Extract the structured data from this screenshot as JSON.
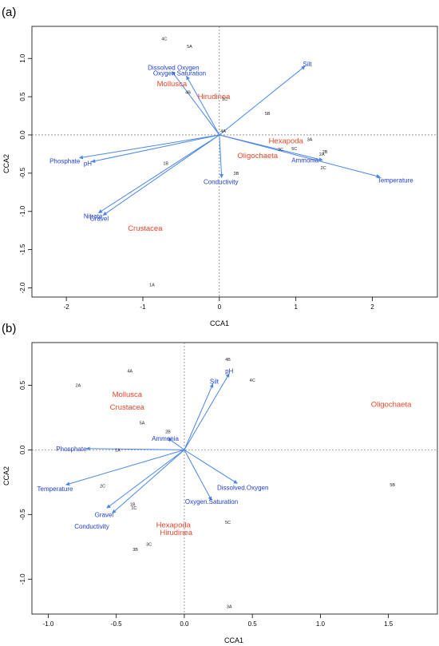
{
  "figure": {
    "colors": {
      "arrow": "#4a86e8",
      "env_label": "#1f3fd6",
      "species_label": "#e8462a",
      "site_label": "#222222",
      "axis": "#000000",
      "refline": "#555555"
    }
  },
  "chart_data": [
    {
      "panel_label": "(a)",
      "type": "scatter",
      "subtype": "CCA triplot",
      "xlabel": "CCA1",
      "ylabel": "CCA2",
      "xlim": [
        -2.45,
        2.85
      ],
      "ylim": [
        -2.12,
        1.42
      ],
      "xticks": [
        -2,
        -1,
        0,
        1,
        2
      ],
      "yticks": [
        -2.0,
        -1.5,
        -1.0,
        -0.5,
        0.0,
        0.5,
        1.0
      ],
      "xtick_labels": [
        "-2",
        "-1",
        "0",
        "1",
        "2"
      ],
      "ytick_labels": [
        "-2.0",
        "-1.5",
        "-1.0",
        "-0.5",
        "0.0",
        "0.5",
        "1.0"
      ],
      "reference_lines": {
        "x": 0,
        "y": 0
      },
      "env_vectors": [
        {
          "name": "Silt",
          "x": 1.12,
          "y": 0.9,
          "lx": 1.15,
          "ly": 0.93
        },
        {
          "name": "Dissolved Oxygen",
          "x": -0.62,
          "y": 0.83,
          "lx": -0.6,
          "ly": 0.88
        },
        {
          "name": "Oxygen Saturation",
          "x": -0.43,
          "y": 0.77,
          "lx": -0.52,
          "ly": 0.81
        },
        {
          "name": "Temperature",
          "x": 2.1,
          "y": -0.55,
          "lx": 2.3,
          "ly": -0.59
        },
        {
          "name": "Ammonia",
          "x": 1.35,
          "y": -0.33,
          "lx": 1.12,
          "ly": -0.33
        },
        {
          "name": "Conductivity",
          "x": 0.03,
          "y": -0.56,
          "lx": 0.02,
          "ly": -0.61
        },
        {
          "name": "Phosphate",
          "x": -1.83,
          "y": -0.3,
          "lx": -2.02,
          "ly": -0.34
        },
        {
          "name": "pH",
          "x": -1.67,
          "y": -0.35,
          "lx": -1.72,
          "ly": -0.37
        },
        {
          "name": "Nitrate",
          "x": -1.58,
          "y": -1.02,
          "lx": -1.65,
          "ly": -1.06
        },
        {
          "name": "Gravel",
          "x": -1.52,
          "y": -1.05,
          "lx": -1.57,
          "ly": -1.09
        }
      ],
      "species": [
        {
          "name": "Mollusca",
          "x": -0.62,
          "y": 0.67
        },
        {
          "name": "Hirudinea",
          "x": -0.07,
          "y": 0.5
        },
        {
          "name": "Hexapoda",
          "x": 0.87,
          "y": -0.08
        },
        {
          "name": "Oligochaeta",
          "x": 0.5,
          "y": -0.27
        },
        {
          "name": "Crustacea",
          "x": -0.97,
          "y": -1.22
        }
      ],
      "sites": [
        {
          "name": "4C",
          "x": -0.72,
          "y": 1.26
        },
        {
          "name": "5A",
          "x": -0.39,
          "y": 1.16
        },
        {
          "name": "4B",
          "x": -0.41,
          "y": 0.56
        },
        {
          "name": "1C",
          "x": 0.07,
          "y": 0.47
        },
        {
          "name": "5B",
          "x": 0.63,
          "y": 0.28
        },
        {
          "name": "4A",
          "x": 0.05,
          "y": 0.05
        },
        {
          "name": "3A",
          "x": 1.18,
          "y": -0.06
        },
        {
          "name": "3C",
          "x": 0.8,
          "y": -0.19
        },
        {
          "name": "5C",
          "x": 0.98,
          "y": -0.18
        },
        {
          "name": "2B",
          "x": 1.38,
          "y": -0.22
        },
        {
          "name": "2A",
          "x": 1.34,
          "y": -0.25
        },
        {
          "name": "2C",
          "x": 1.36,
          "y": -0.43
        },
        {
          "name": "1B",
          "x": -0.7,
          "y": -0.37
        },
        {
          "name": "3B",
          "x": 0.22,
          "y": -0.5
        },
        {
          "name": "1A",
          "x": -0.88,
          "y": -1.96
        }
      ]
    },
    {
      "panel_label": "(b)",
      "type": "scatter",
      "subtype": "CCA triplot",
      "xlabel": "CCA1",
      "ylabel": "CCA2",
      "xlim": [
        -1.12,
        1.86
      ],
      "ylim": [
        -1.27,
        0.83
      ],
      "xticks": [
        -1.0,
        -0.5,
        0.0,
        0.5,
        1.0,
        1.5
      ],
      "yticks": [
        -1.0,
        -0.5,
        0.0,
        0.5
      ],
      "xtick_labels": [
        "-1.0",
        "-0.5",
        "0.0",
        "0.5",
        "1.0",
        "1.5"
      ],
      "ytick_labels": [
        "-1.0",
        "-0.5",
        "0.0",
        "0.5"
      ],
      "reference_lines": {
        "x": 0,
        "y": 0
      },
      "env_vectors": [
        {
          "name": "Silt",
          "x": 0.21,
          "y": 0.51,
          "lx": 0.22,
          "ly": 0.53
        },
        {
          "name": "pH",
          "x": 0.33,
          "y": 0.59,
          "lx": 0.33,
          "ly": 0.61
        },
        {
          "name": "Ammonia",
          "x": -0.12,
          "y": 0.09,
          "lx": -0.14,
          "ly": 0.09
        },
        {
          "name": "Phosphate",
          "x": -0.72,
          "y": 0.01,
          "lx": -0.83,
          "ly": 0.01
        },
        {
          "name": "Temperature",
          "x": -0.87,
          "y": -0.27,
          "lx": -0.95,
          "ly": -0.3
        },
        {
          "name": "Gravel",
          "x": -0.57,
          "y": -0.45,
          "lx": -0.59,
          "ly": -0.5
        },
        {
          "name": "Conductivity",
          "x": -0.53,
          "y": -0.49,
          "lx": -0.68,
          "ly": -0.59
        },
        {
          "name": "Dissolved.Oxygen",
          "x": 0.39,
          "y": -0.26,
          "lx": 0.43,
          "ly": -0.29
        },
        {
          "name": "Oxygen.Saturation",
          "x": 0.2,
          "y": -0.39,
          "lx": 0.2,
          "ly": -0.4
        }
      ],
      "species": [
        {
          "name": "Mollusca",
          "x": -0.42,
          "y": 0.43
        },
        {
          "name": "Crustacea",
          "x": -0.42,
          "y": 0.33
        },
        {
          "name": "Oligochaeta",
          "x": 1.52,
          "y": 0.35
        },
        {
          "name": "Hexapoda",
          "x": -0.08,
          "y": -0.58
        },
        {
          "name": "Hirudinea",
          "x": -0.06,
          "y": -0.64
        }
      ],
      "sites": [
        {
          "name": "4B",
          "x": 0.32,
          "y": 0.7
        },
        {
          "name": "4A",
          "x": -0.4,
          "y": 0.61
        },
        {
          "name": "4C",
          "x": 0.5,
          "y": 0.54
        },
        {
          "name": "2A",
          "x": -0.78,
          "y": 0.5
        },
        {
          "name": "5A",
          "x": -0.31,
          "y": 0.21
        },
        {
          "name": "2B",
          "x": -0.12,
          "y": 0.14
        },
        {
          "name": "1A",
          "x": -0.49,
          "y": 0.0
        },
        {
          "name": "2C",
          "x": -0.6,
          "y": -0.28
        },
        {
          "name": "5B",
          "x": 1.53,
          "y": -0.27
        },
        {
          "name": "1B",
          "x": -0.38,
          "y": -0.42
        },
        {
          "name": "1C",
          "x": -0.37,
          "y": -0.45
        },
        {
          "name": "5C",
          "x": 0.32,
          "y": -0.56
        },
        {
          "name": "3C",
          "x": -0.26,
          "y": -0.73
        },
        {
          "name": "3B",
          "x": -0.36,
          "y": -0.77
        },
        {
          "name": "3A",
          "x": 0.33,
          "y": -1.21
        }
      ]
    }
  ]
}
